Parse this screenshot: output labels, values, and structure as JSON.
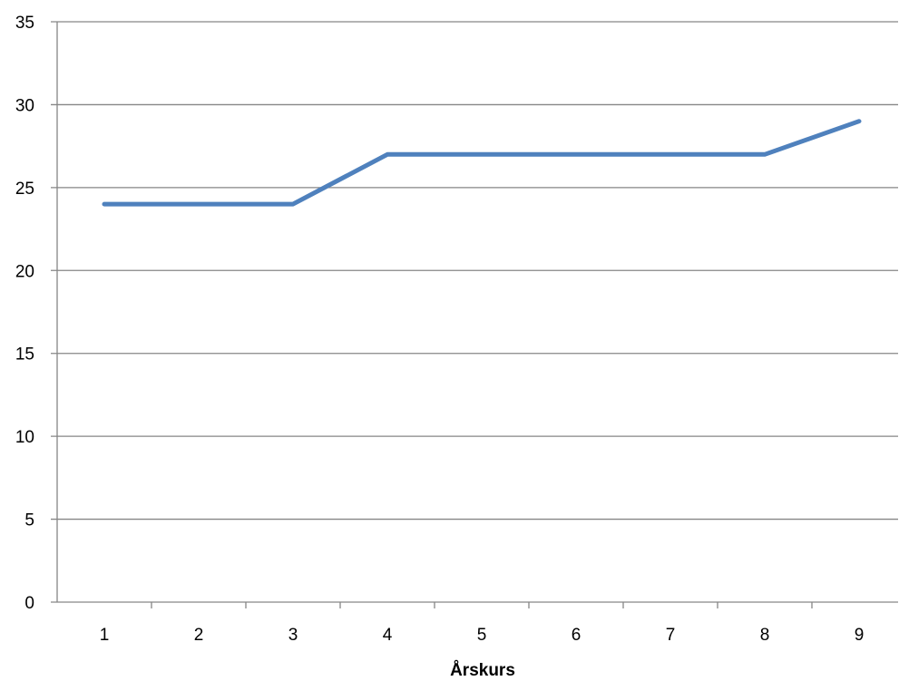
{
  "chart_data": {
    "type": "line",
    "title": "",
    "xlabel": "Årskurs",
    "ylabel": "",
    "categories": [
      "1",
      "2",
      "3",
      "4",
      "5",
      "6",
      "7",
      "8",
      "9"
    ],
    "series": [
      {
        "values": [
          24,
          24,
          24,
          27,
          27,
          27,
          27,
          27,
          29
        ]
      }
    ],
    "ylim": [
      0,
      35
    ],
    "yticks": [
      "0",
      "5",
      "10",
      "15",
      "20",
      "25",
      "30",
      "35"
    ],
    "grid": "horizontal",
    "legend": "none",
    "colors": {
      "line": "#4f81bd",
      "grid": "#868686",
      "axis": "#868686"
    }
  }
}
